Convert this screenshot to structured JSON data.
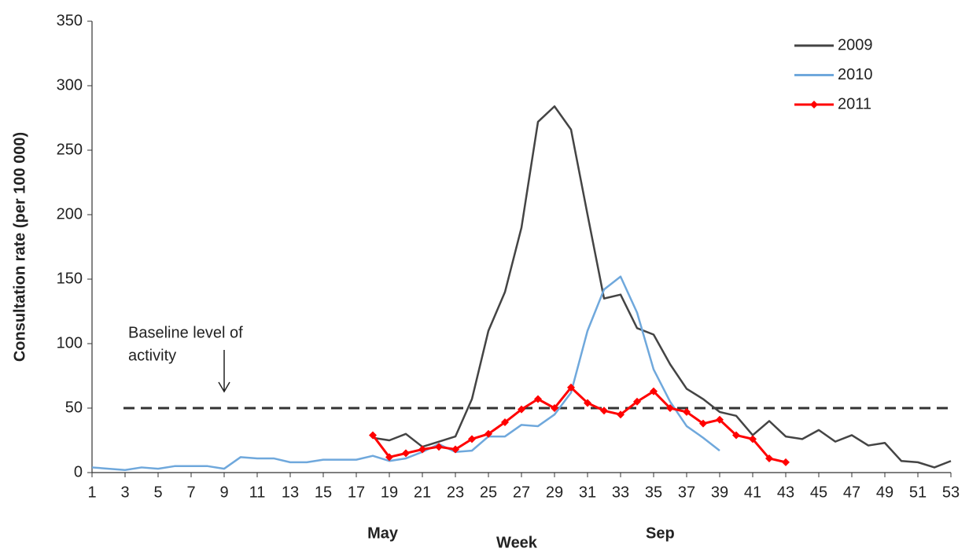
{
  "chart_data": {
    "type": "line",
    "y_label": "Consultation rate (per 100 000)",
    "x_label": "Week",
    "xlim": [
      1,
      53
    ],
    "xticks": [
      1,
      3,
      5,
      7,
      9,
      11,
      13,
      15,
      17,
      19,
      21,
      23,
      25,
      27,
      29,
      31,
      33,
      35,
      37,
      39,
      41,
      43,
      45,
      47,
      49,
      51,
      53
    ],
    "ylim": [
      0,
      350
    ],
    "yticks": [
      0,
      50,
      100,
      150,
      200,
      250,
      300,
      350
    ],
    "month_labels": [
      {
        "x": 18.6,
        "label": "May"
      },
      {
        "x": 35.4,
        "label": "Sep"
      }
    ],
    "baseline": {
      "value": 50,
      "text_lines": [
        "Baseline level of",
        "activity"
      ],
      "x": 9
    },
    "legend": "top-right",
    "series": [
      {
        "name": "2009",
        "color": "#444444",
        "x": [
          18,
          19,
          20,
          21,
          22,
          23,
          24,
          25,
          26,
          27,
          28,
          29,
          30,
          31,
          32,
          33,
          34,
          35,
          36,
          37,
          38,
          39,
          40,
          41,
          42,
          43,
          44,
          45,
          46,
          47,
          48,
          49,
          50,
          51,
          52,
          53
        ],
        "values": [
          27,
          25,
          30,
          20,
          24,
          28,
          57,
          110,
          140,
          190,
          272,
          284,
          266,
          200,
          135,
          138,
          112,
          107,
          84,
          65,
          57,
          47,
          44,
          29,
          40,
          28,
          26,
          33,
          24,
          29,
          21,
          23,
          9,
          8,
          4,
          9
        ]
      },
      {
        "name": "2010",
        "color": "#6fa8dc",
        "x": [
          1,
          2,
          3,
          4,
          5,
          6,
          7,
          8,
          9,
          10,
          11,
          12,
          13,
          14,
          15,
          16,
          17,
          18,
          19,
          20,
          21,
          22,
          23,
          24,
          25,
          26,
          27,
          28,
          29,
          30,
          31,
          32,
          33,
          34,
          35,
          36,
          37,
          38,
          39
        ],
        "values": [
          4,
          3,
          2,
          4,
          3,
          5,
          5,
          5,
          3,
          12,
          11,
          11,
          8,
          8,
          10,
          10,
          10,
          13,
          9,
          11,
          16,
          22,
          16,
          17,
          28,
          28,
          37,
          36,
          45,
          62,
          110,
          142,
          152,
          124,
          80,
          55,
          36,
          27,
          17
        ]
      },
      {
        "name": "2011",
        "color": "#ff0000",
        "markers": true,
        "x": [
          18,
          19,
          20,
          21,
          22,
          23,
          24,
          25,
          26,
          27,
          28,
          29,
          30,
          31,
          32,
          33,
          34,
          35,
          36,
          37,
          38,
          39,
          40,
          41,
          42,
          43
        ],
        "values": [
          29,
          12,
          15,
          18,
          20,
          18,
          26,
          30,
          39,
          49,
          57,
          50,
          66,
          54,
          48,
          45,
          55,
          63,
          50,
          47,
          38,
          41,
          29,
          26,
          11,
          8
        ]
      }
    ]
  }
}
